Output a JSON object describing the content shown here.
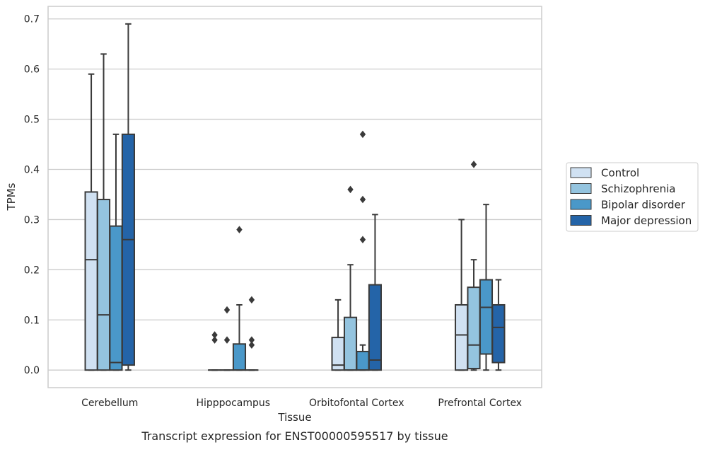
{
  "chart_data": {
    "type": "box",
    "xlabel": "Tissue",
    "ylabel": "TPMs",
    "caption": "Transcript expression for ENST00000595517 by tissue",
    "categories": [
      "Cerebellum",
      "Hipppocampus",
      "Orbitofontal Cortex",
      "Prefrontal Cortex"
    ],
    "ylim": [
      -0.035,
      0.725
    ],
    "yticks": [
      "0.0",
      "0.1",
      "0.2",
      "0.3",
      "0.4",
      "0.5",
      "0.6",
      "0.7"
    ],
    "grid": true,
    "legend_position": "right",
    "series": [
      {
        "name": "Control",
        "color": "#d0e1f2",
        "boxes": [
          {
            "q1": 0.0,
            "median": 0.22,
            "q3": 0.355,
            "whisker_low": 0.0,
            "whisker_high": 0.59,
            "outliers": []
          },
          {
            "q1": 0.0,
            "median": 0.0,
            "q3": 0.0,
            "whisker_low": 0.0,
            "whisker_high": 0.0,
            "outliers": [
              0.07,
              0.06
            ]
          },
          {
            "q1": 0.0,
            "median": 0.01,
            "q3": 0.065,
            "whisker_low": 0.0,
            "whisker_high": 0.14,
            "outliers": []
          },
          {
            "q1": 0.0,
            "median": 0.07,
            "q3": 0.13,
            "whisker_low": 0.0,
            "whisker_high": 0.3,
            "outliers": []
          }
        ]
      },
      {
        "name": "Schizophrenia",
        "color": "#94c4df",
        "boxes": [
          {
            "q1": 0.0,
            "median": 0.11,
            "q3": 0.34,
            "whisker_low": 0.0,
            "whisker_high": 0.63,
            "outliers": []
          },
          {
            "q1": 0.0,
            "median": 0.0,
            "q3": 0.0,
            "whisker_low": 0.0,
            "whisker_high": 0.0,
            "outliers": [
              0.12,
              0.06
            ]
          },
          {
            "q1": 0.0,
            "median": 0.0,
            "q3": 0.105,
            "whisker_low": 0.0,
            "whisker_high": 0.21,
            "outliers": [
              0.36
            ]
          },
          {
            "q1": 0.003,
            "median": 0.05,
            "q3": 0.165,
            "whisker_low": 0.0,
            "whisker_high": 0.22,
            "outliers": [
              0.41
            ]
          }
        ]
      },
      {
        "name": "Bipolar disorder",
        "color": "#4a98c9",
        "boxes": [
          {
            "q1": 0.0,
            "median": 0.015,
            "q3": 0.287,
            "whisker_low": 0.0,
            "whisker_high": 0.47,
            "outliers": []
          },
          {
            "q1": 0.0,
            "median": 0.0,
            "q3": 0.052,
            "whisker_low": 0.0,
            "whisker_high": 0.13,
            "outliers": [
              0.28
            ]
          },
          {
            "q1": 0.0,
            "median": 0.0,
            "q3": 0.037,
            "whisker_low": 0.0,
            "whisker_high": 0.05,
            "outliers": [
              0.47,
              0.34,
              0.26
            ]
          },
          {
            "q1": 0.032,
            "median": 0.125,
            "q3": 0.18,
            "whisker_low": 0.0,
            "whisker_high": 0.33,
            "outliers": []
          }
        ]
      },
      {
        "name": "Major depression",
        "color": "#2464a8",
        "boxes": [
          {
            "q1": 0.01,
            "median": 0.26,
            "q3": 0.47,
            "whisker_low": 0.0,
            "whisker_high": 0.69,
            "outliers": []
          },
          {
            "q1": 0.0,
            "median": 0.0,
            "q3": 0.0,
            "whisker_low": 0.0,
            "whisker_high": 0.0,
            "outliers": [
              0.14,
              0.06,
              0.05
            ]
          },
          {
            "q1": 0.0,
            "median": 0.02,
            "q3": 0.17,
            "whisker_low": 0.0,
            "whisker_high": 0.31,
            "outliers": []
          },
          {
            "q1": 0.015,
            "median": 0.085,
            "q3": 0.13,
            "whisker_low": 0.0,
            "whisker_high": 0.18,
            "outliers": []
          }
        ]
      }
    ]
  }
}
